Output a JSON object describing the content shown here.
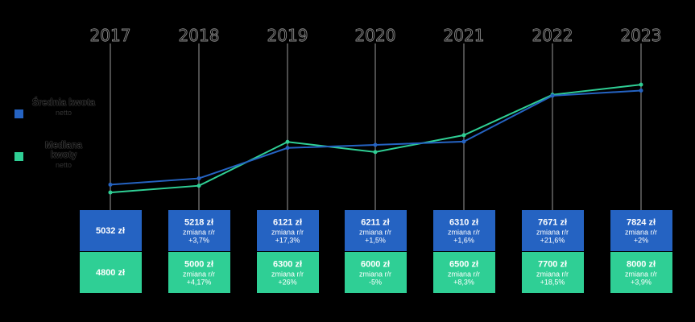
{
  "legend": {
    "items": [
      {
        "label": "Średnia kwota",
        "sub": "netto",
        "color": "#2563c2"
      },
      {
        "label": "Mediana kwoty",
        "sub": "netto",
        "color": "#2fcf95"
      }
    ]
  },
  "chart_data": {
    "type": "line",
    "categories": [
      "2017",
      "2018",
      "2019",
      "2020",
      "2021",
      "2022",
      "2023"
    ],
    "ylim": [
      4300,
      8600
    ],
    "series": [
      {
        "name": "Średnia kwota netto",
        "color": "#2563c2",
        "values": [
          5032,
          5218,
          6121,
          6211,
          6310,
          7671,
          7824
        ]
      },
      {
        "name": "Mediana kwoty netto",
        "color": "#2fcf95",
        "values": [
          4800,
          5000,
          6300,
          6000,
          6500,
          7700,
          8000
        ]
      }
    ],
    "boxes": {
      "average": [
        {
          "value": "5032 zł",
          "change_label": "",
          "change": ""
        },
        {
          "value": "5218 zł",
          "change_label": "zmiana r/r",
          "change": "+3,7%"
        },
        {
          "value": "6121 zł",
          "change_label": "zmiana r/r",
          "change": "+17,3%"
        },
        {
          "value": "6211 zł",
          "change_label": "zmiana r/r",
          "change": "+1,5%"
        },
        {
          "value": "6310 zł",
          "change_label": "zmiana r/r",
          "change": "+1,6%"
        },
        {
          "value": "7671 zł",
          "change_label": "zmiana r/r",
          "change": "+21,6%"
        },
        {
          "value": "7824 zł",
          "change_label": "zmiana r/r",
          "change": "+2%"
        }
      ],
      "median": [
        {
          "value": "4800 zł",
          "change_label": "",
          "change": ""
        },
        {
          "value": "5000 zł",
          "change_label": "zmiana r/r",
          "change": "+4,17%"
        },
        {
          "value": "6300 zł",
          "change_label": "zmiana r/r",
          "change": "+26%"
        },
        {
          "value": "6000 zł",
          "change_label": "zmiana r/r",
          "change": "-5%"
        },
        {
          "value": "6500 zł",
          "change_label": "zmiana r/r",
          "change": "+8,3%"
        },
        {
          "value": "7700 zł",
          "change_label": "zmiana r/r",
          "change": "+18,5%"
        },
        {
          "value": "8000 zł",
          "change_label": "zmiana r/r",
          "change": "+3,9%"
        }
      ]
    }
  }
}
